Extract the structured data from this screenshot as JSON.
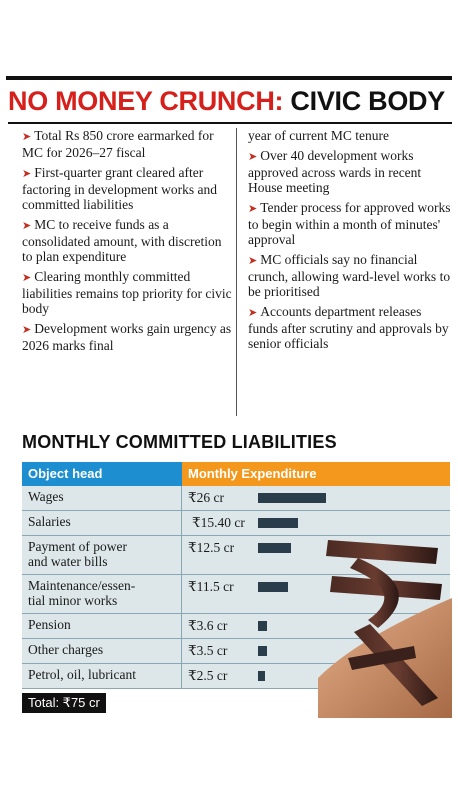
{
  "headline": {
    "red_part": "NO MONEY CRUNCH:",
    "dark_part": "CIVIC BODY"
  },
  "left_bullets": [
    "Total Rs 850 crore earmarked for MC for 2026–27 fiscal",
    "First-quarter grant cleared after factoring in development works and committed liabilities",
    "MC to receive funds as a consolidated amount, with discretion to plan expenditure",
    "Clearing monthly committed liabilities remains top priority for civic body",
    "Development works gain urgency as 2026 marks final"
  ],
  "right_continuation": "year of current MC tenure",
  "right_bullets": [
    "Over 40 development works approved across wards in recent House meeting",
    "Tender process for approved works to begin within a month of minutes' approval",
    "MC officials say no financial crunch, allowing ward-level works to be prioritised",
    "Accounts department releases funds after scrutiny and approvals by senior officials"
  ],
  "table": {
    "title": "MONTHLY COMMITTED LIABILITIES",
    "col_head": "Object head",
    "col_exp": "Monthly Expenditure",
    "total": "Total: ₹75 cr"
  },
  "chart_data": {
    "type": "bar",
    "categories": [
      "Wages",
      "Salaries",
      "Payment of power and water bills",
      "Maintenance/essen-tial minor works",
      "Pension",
      "Other charges",
      "Petrol, oil, lubricant"
    ],
    "category_lines": [
      [
        "Wages"
      ],
      [
        "Salaries"
      ],
      [
        "Payment of power",
        "and water bills"
      ],
      [
        "Maintenance/essen-",
        "tial minor works"
      ],
      [
        "Pension"
      ],
      [
        "Other charges"
      ],
      [
        "Petrol, oil, lubricant"
      ]
    ],
    "values": [
      26,
      15.4,
      12.5,
      11.5,
      3.6,
      3.5,
      2.5
    ],
    "value_labels": [
      "₹26 cr",
      "₹15.40 cr",
      "₹12.5 cr",
      "₹11.5 cr",
      "₹3.6 cr",
      "₹3.5 cr",
      "₹2.5 cr"
    ],
    "unit": "cr",
    "colors": {
      "bar": "#2a3d4a",
      "head_blue": "#1d8fd0",
      "head_orange": "#f3981c",
      "row_bg": "#dde7ea",
      "headline_red": "#d6201b",
      "arrow_red": "#c62d1f"
    }
  }
}
